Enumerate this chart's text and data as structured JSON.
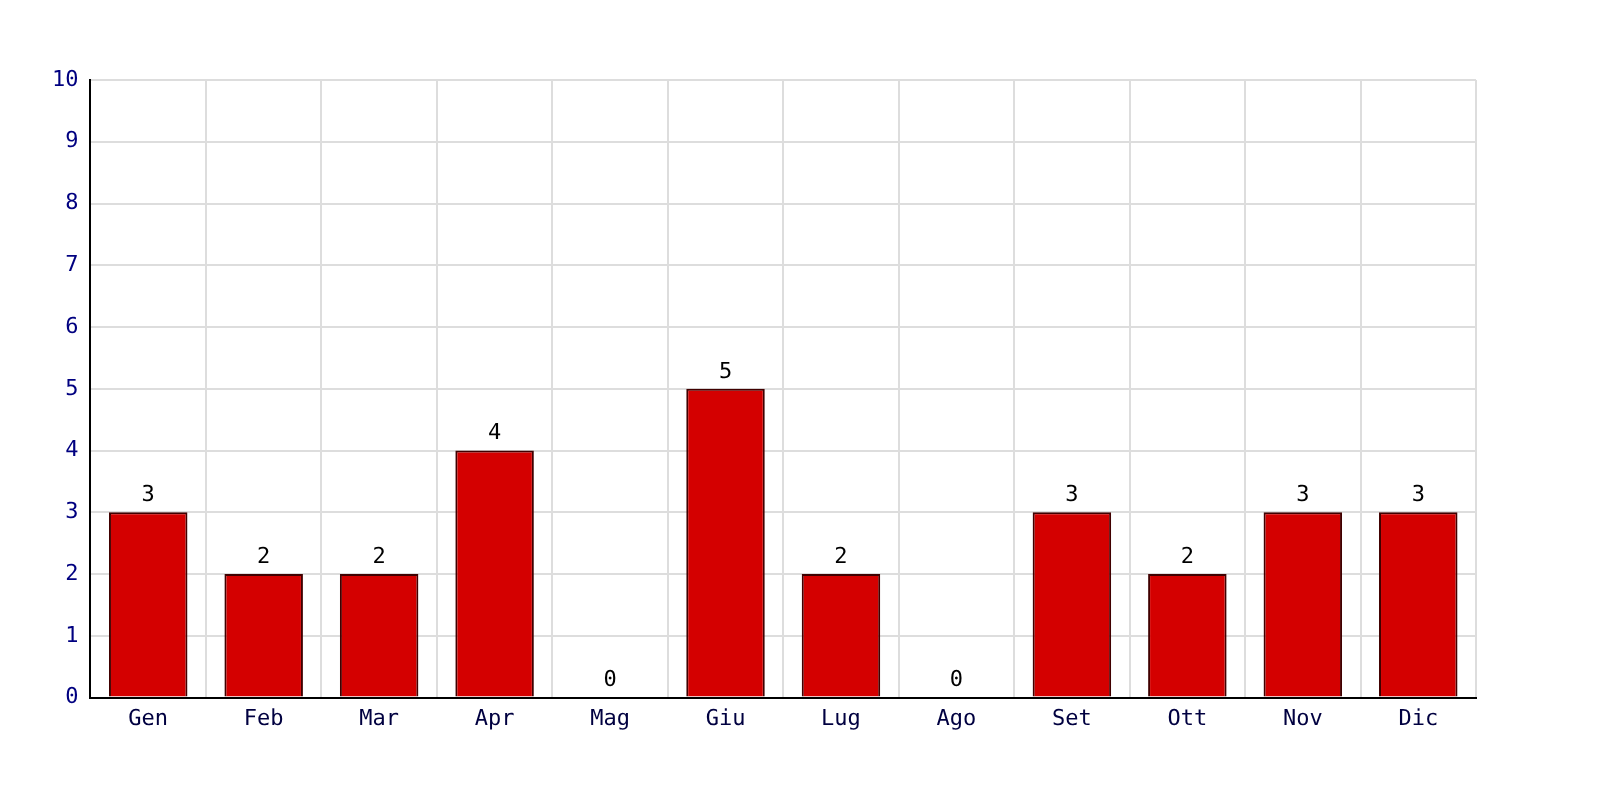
{
  "chart_data": {
    "type": "bar",
    "categories": [
      "Gen",
      "Feb",
      "Mar",
      "Apr",
      "Mag",
      "Giu",
      "Lug",
      "Ago",
      "Set",
      "Ott",
      "Nov",
      "Dic"
    ],
    "values": [
      3,
      2,
      2,
      4,
      0,
      5,
      2,
      0,
      3,
      2,
      3,
      3
    ],
    "color": "#d40000",
    "ylim": [
      0,
      10
    ],
    "yticks": [
      0,
      1,
      2,
      3,
      4,
      5,
      6,
      7,
      8,
      9,
      10
    ],
    "grid": true,
    "data_labels": true
  }
}
